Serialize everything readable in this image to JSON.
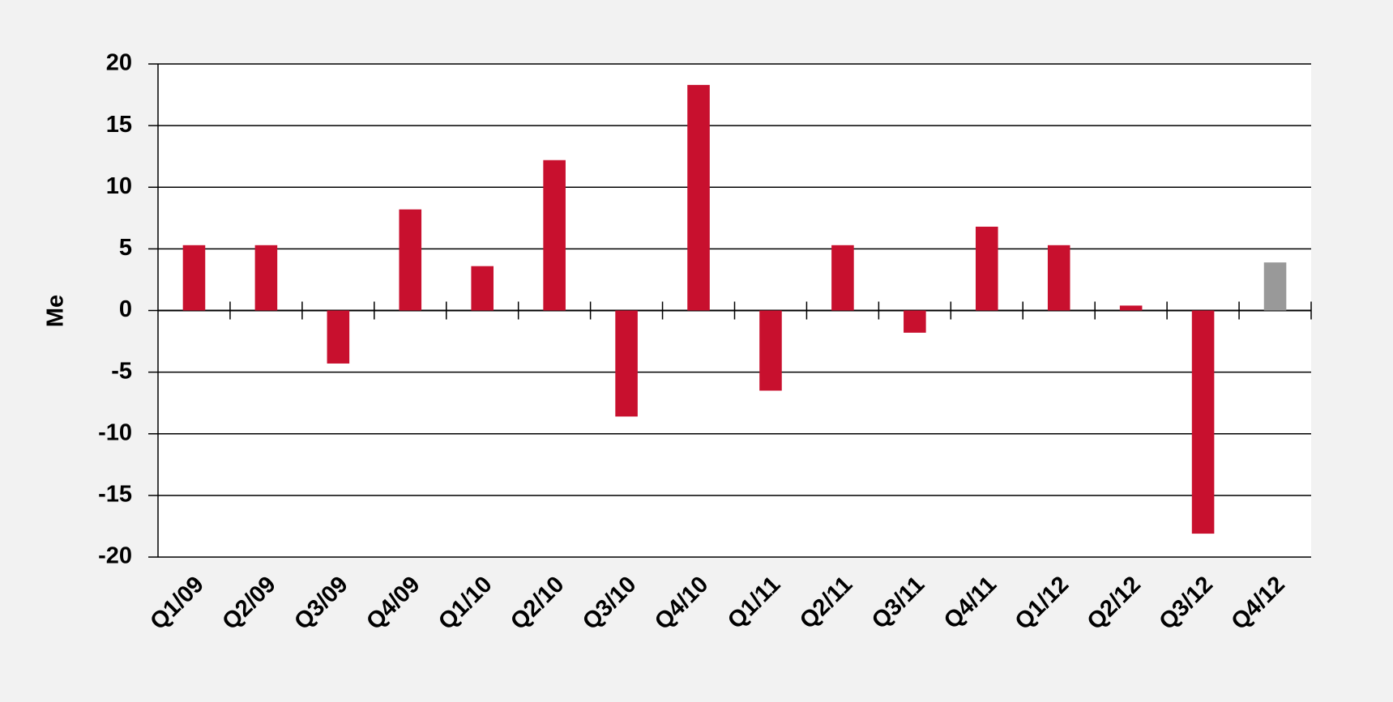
{
  "chart_data": {
    "type": "bar",
    "y_label": "Me",
    "categories": [
      "Q1/09",
      "Q2/09",
      "Q3/09",
      "Q4/09",
      "Q1/10",
      "Q2/10",
      "Q3/10",
      "Q4/10",
      "Q1/11",
      "Q2/11",
      "Q3/11",
      "Q4/11",
      "Q1/12",
      "Q2/12",
      "Q3/12",
      "Q4/12"
    ],
    "values": [
      5.3,
      5.3,
      -4.3,
      8.2,
      3.6,
      12.2,
      -8.6,
      18.3,
      -6.5,
      5.3,
      -1.8,
      6.8,
      5.3,
      0.4,
      -18.1,
      3.9
    ],
    "colors": [
      "#c8102e",
      "#c8102e",
      "#c8102e",
      "#c8102e",
      "#c8102e",
      "#c8102e",
      "#c8102e",
      "#c8102e",
      "#c8102e",
      "#c8102e",
      "#c8102e",
      "#c8102e",
      "#c8102e",
      "#c8102e",
      "#c8102e",
      "#999999"
    ],
    "ylim": [
      -20,
      20
    ],
    "yticks": [
      -20,
      -15,
      -10,
      -5,
      0,
      5,
      10,
      15,
      20
    ],
    "grid": true
  }
}
